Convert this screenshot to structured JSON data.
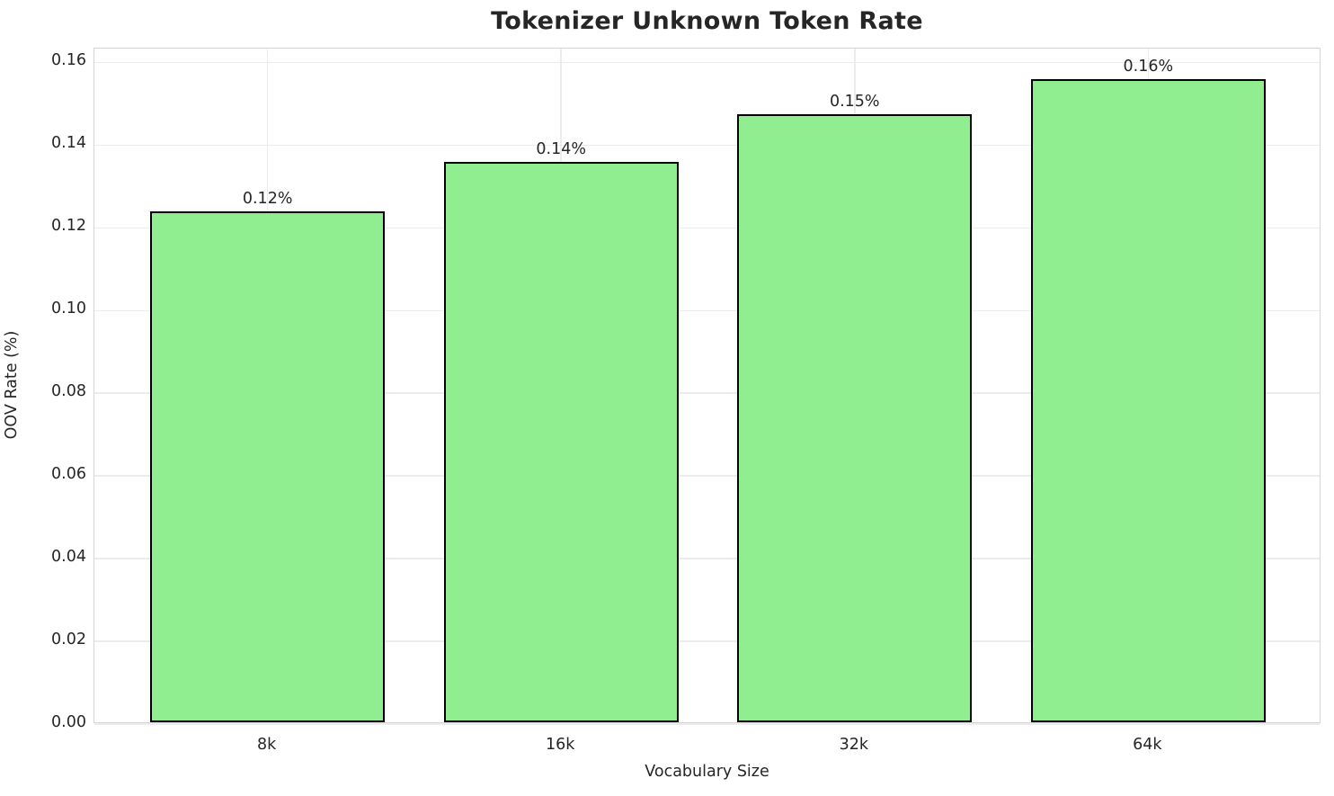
{
  "chart_data": {
    "type": "bar",
    "title": "Tokenizer Unknown Token Rate",
    "xlabel": "Vocabulary Size",
    "ylabel": "OOV Rate (%)",
    "categories": [
      "8k",
      "16k",
      "32k",
      "64k"
    ],
    "values": [
      0.1235,
      0.1355,
      0.147,
      0.1555
    ],
    "bar_labels": [
      "0.12%",
      "0.14%",
      "0.15%",
      "0.16%"
    ],
    "y_tick_labels": [
      "0.00",
      "0.02",
      "0.04",
      "0.06",
      "0.08",
      "0.10",
      "0.12",
      "0.14",
      "0.16"
    ],
    "y_tick_values": [
      0,
      0.02,
      0.04,
      0.06,
      0.08,
      0.1,
      0.12,
      0.14,
      0.16
    ],
    "ylim": [
      0,
      0.16335
    ],
    "xlim": [
      -0.59,
      3.59
    ],
    "bar_width": 0.8,
    "grid": true,
    "legend": "none",
    "colors": {
      "bar_fill": "#90EE90",
      "bar_edge": "#000000",
      "grid_line": "#ececec",
      "spine": "#d5d5d5",
      "text": "#262626",
      "background": "#ffffff"
    }
  }
}
